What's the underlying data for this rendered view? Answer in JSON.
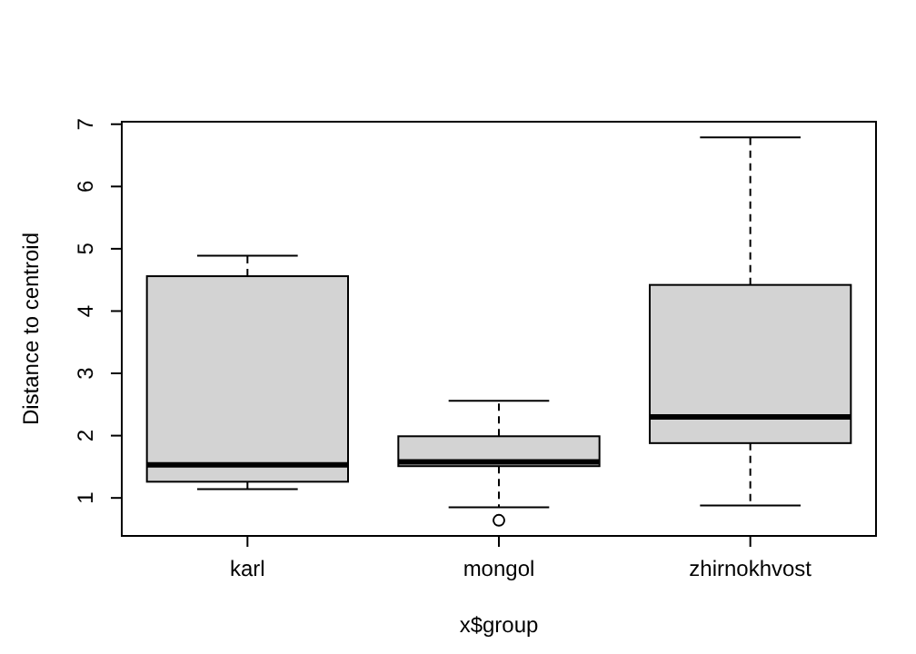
{
  "chart_data": {
    "type": "box",
    "xlabel": "x$group",
    "ylabel": "Distance to centroid",
    "categories": [
      "karl",
      "mongol",
      "zhirnokhvost"
    ],
    "color": "#d3d3d3",
    "boxes": [
      {
        "low": 1.14,
        "q1": 1.26,
        "median": 1.53,
        "q3": 4.56,
        "high": 4.89
      },
      {
        "low": 0.85,
        "q1": 1.51,
        "median": 1.58,
        "q3": 1.99,
        "high": 2.56,
        "outliers": [
          0.64
        ]
      },
      {
        "low": 0.88,
        "q1": 1.88,
        "median": 2.3,
        "q3": 4.42,
        "high": 6.79
      }
    ],
    "ylim": [
      0.39,
      7.04
    ],
    "yticks": [
      1,
      2,
      3,
      4,
      5,
      6,
      7
    ],
    "grid": false
  }
}
